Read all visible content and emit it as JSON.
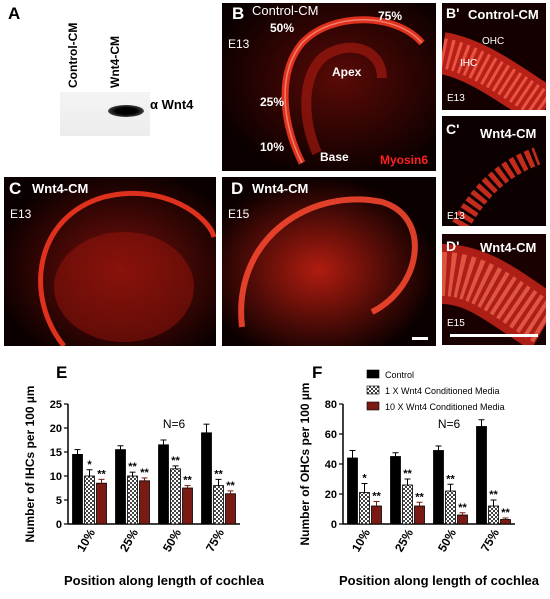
{
  "panelA": {
    "letter": "A",
    "lane1": "Control-CM",
    "lane2": "Wnt4-CM",
    "band_label": "α Wnt4"
  },
  "panelB": {
    "letter": "B",
    "condition": "Control-CM",
    "age": "E13",
    "pct50": "50%",
    "pct75": "75%",
    "pct25": "25%",
    "pct10": "10%",
    "apex": "Apex",
    "base": "Base",
    "stain": "Myosin6"
  },
  "panelB2": {
    "letter": "B'",
    "condition": "Control-CM",
    "ohc": "OHC",
    "ihc": "IHC",
    "age": "E13"
  },
  "panelC2": {
    "letter": "C'",
    "condition": "Wnt4-CM",
    "age": "E13"
  },
  "panelD2": {
    "letter": "D'",
    "condition": "Wnt4-CM",
    "age": "E15"
  },
  "panelC": {
    "letter": "C",
    "condition": "Wnt4-CM",
    "age": "E13"
  },
  "panelD": {
    "letter": "D",
    "condition": "Wnt4-CM",
    "age": "E15"
  },
  "colors": {
    "control": "#000000",
    "x1": "#8a8a8a",
    "x10": "#7a1a14",
    "fluor": "#e8281e"
  },
  "chart_data": [
    {
      "panel": "E",
      "type": "bar",
      "ylabel": "Number of IHCs per 100 µm",
      "xlabel": "Position along length of cochlea",
      "categories": [
        "10%",
        "25%",
        "50%",
        "75%"
      ],
      "ylim": [
        0,
        25
      ],
      "yticks": [
        "0",
        "5",
        "10",
        "15",
        "20",
        "25"
      ],
      "annotation": "N=6",
      "series": [
        {
          "values": [
            14.5,
            15.5,
            16.5,
            19.0
          ],
          "errors": [
            1.0,
            0.8,
            1.0,
            1.8
          ],
          "stars": [
            "",
            "",
            "",
            ""
          ]
        },
        {
          "values": [
            10.0,
            10.0,
            11.5,
            8.0
          ],
          "errors": [
            1.3,
            0.8,
            0.6,
            1.3
          ],
          "stars": [
            "*",
            "**",
            "**",
            "**"
          ]
        },
        {
          "values": [
            8.5,
            9.0,
            7.5,
            6.3
          ],
          "errors": [
            0.8,
            0.6,
            0.5,
            0.6
          ],
          "stars": [
            "**",
            "**",
            "**",
            "**"
          ]
        }
      ]
    },
    {
      "panel": "F",
      "type": "bar",
      "ylabel": "Number of OHCs per 100 µm",
      "xlabel": "Position along length of cochlea",
      "categories": [
        "10%",
        "25%",
        "50%",
        "75%"
      ],
      "ylim": [
        0,
        80
      ],
      "yticks": [
        "0",
        "20",
        "40",
        "60",
        "80"
      ],
      "annotation": "N=6",
      "legend": [
        "Control",
        "1 X Wnt4 Conditioned Media",
        "10 X Wnt4 Conditioned Media"
      ],
      "series": [
        {
          "values": [
            44,
            45,
            49,
            65
          ],
          "errors": [
            5,
            2.5,
            3,
            4.5
          ],
          "stars": [
            "",
            "",
            "",
            ""
          ]
        },
        {
          "values": [
            21,
            26,
            22,
            12
          ],
          "errors": [
            6,
            4,
            4.5,
            4
          ],
          "stars": [
            "*",
            "**",
            "**",
            "**"
          ]
        },
        {
          "values": [
            12,
            12,
            6,
            3
          ],
          "errors": [
            3,
            2.5,
            1.5,
            1
          ],
          "stars": [
            "**",
            "**",
            "**",
            "**"
          ]
        }
      ]
    }
  ],
  "chart_letters": {
    "E": "E",
    "F": "F"
  }
}
